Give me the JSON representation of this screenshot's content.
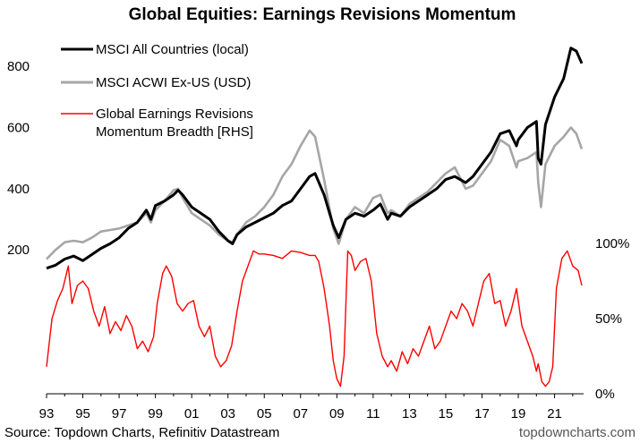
{
  "chart_data": {
    "type": "line",
    "title": "Global Equities: Earnings Revisions Momentum",
    "x_ticks": [
      "93",
      "95",
      "97",
      "99",
      "01",
      "03",
      "05",
      "07",
      "09",
      "11",
      "13",
      "15",
      "17",
      "19",
      "21"
    ],
    "x_range": [
      1993.0,
      2022.6
    ],
    "left_axis": {
      "ticks": [
        "200",
        "400",
        "600",
        "800"
      ],
      "range": [
        110,
        900
      ]
    },
    "right_axis": {
      "ticks": [
        "0%",
        "50%",
        "100%"
      ],
      "range": [
        0,
        100
      ]
    },
    "legend": [
      {
        "label": "MSCI All Countries (local)",
        "color": "#000000"
      },
      {
        "label": "MSCI ACWI Ex-US (USD)",
        "color": "#a6a6a6"
      },
      {
        "label_lines": [
          "Global Earnings Revisions",
          "Momentum Breadth [RHS]"
        ],
        "color": "#ff0000"
      }
    ],
    "series": [
      {
        "name": "MSCI All Countries (local)",
        "axis": "left",
        "color": "#000000",
        "x": [
          1993.0,
          1993.5,
          1994.0,
          1994.5,
          1995.0,
          1995.5,
          1996.0,
          1996.5,
          1997.0,
          1997.5,
          1998.0,
          1998.5,
          1998.75,
          1999.0,
          1999.5,
          2000.0,
          2000.25,
          2000.5,
          2001.0,
          2001.5,
          2002.0,
          2002.5,
          2003.0,
          2003.25,
          2003.5,
          2004.0,
          2004.5,
          2005.0,
          2005.5,
          2006.0,
          2006.5,
          2007.0,
          2007.5,
          2007.8,
          2008.3,
          2008.8,
          2009.1,
          2009.5,
          2010.0,
          2010.5,
          2011.0,
          2011.4,
          2011.8,
          2012.0,
          2012.5,
          2013.0,
          2013.5,
          2014.0,
          2014.5,
          2015.0,
          2015.5,
          2016.1,
          2016.5,
          2017.0,
          2017.5,
          2018.0,
          2018.5,
          2018.9,
          2019.0,
          2019.5,
          2020.0,
          2020.1,
          2020.25,
          2020.5,
          2021.0,
          2021.5,
          2021.9,
          2022.2,
          2022.5
        ],
        "y": [
          140,
          150,
          170,
          180,
          165,
          185,
          205,
          220,
          240,
          270,
          290,
          330,
          300,
          345,
          360,
          380,
          395,
          380,
          340,
          320,
          300,
          260,
          230,
          220,
          250,
          275,
          290,
          305,
          320,
          345,
          360,
          400,
          440,
          450,
          380,
          280,
          240,
          300,
          320,
          310,
          330,
          350,
          300,
          320,
          310,
          340,
          360,
          380,
          400,
          430,
          440,
          420,
          440,
          480,
          520,
          580,
          590,
          540,
          560,
          600,
          620,
          500,
          480,
          610,
          700,
          760,
          860,
          850,
          810
        ]
      },
      {
        "name": "MSCI ACWI Ex-US (USD)",
        "axis": "left",
        "color": "#a6a6a6",
        "x": [
          1993.0,
          1993.5,
          1994.0,
          1994.5,
          1995.0,
          1995.5,
          1996.0,
          1996.5,
          1997.0,
          1997.5,
          1998.0,
          1998.5,
          1998.75,
          1999.0,
          1999.5,
          2000.0,
          2000.25,
          2000.5,
          2001.0,
          2001.5,
          2002.0,
          2002.5,
          2003.0,
          2003.25,
          2003.5,
          2004.0,
          2004.5,
          2005.0,
          2005.5,
          2006.0,
          2006.5,
          2007.0,
          2007.5,
          2007.8,
          2008.3,
          2008.8,
          2009.1,
          2009.5,
          2010.0,
          2010.5,
          2011.0,
          2011.4,
          2011.8,
          2012.0,
          2012.5,
          2013.0,
          2013.5,
          2014.0,
          2014.5,
          2015.0,
          2015.5,
          2016.1,
          2016.5,
          2017.0,
          2017.5,
          2018.0,
          2018.5,
          2018.9,
          2019.0,
          2019.5,
          2020.0,
          2020.1,
          2020.25,
          2020.5,
          2021.0,
          2021.5,
          2021.9,
          2022.2,
          2022.5
        ],
        "y": [
          170,
          200,
          225,
          230,
          225,
          240,
          260,
          265,
          270,
          280,
          290,
          320,
          290,
          330,
          360,
          395,
          400,
          370,
          320,
          300,
          280,
          250,
          230,
          225,
          250,
          290,
          310,
          340,
          380,
          440,
          480,
          540,
          590,
          570,
          430,
          270,
          220,
          300,
          340,
          320,
          370,
          380,
          320,
          330,
          310,
          350,
          370,
          390,
          420,
          450,
          470,
          400,
          410,
          450,
          490,
          560,
          540,
          470,
          490,
          500,
          520,
          420,
          340,
          480,
          540,
          570,
          600,
          580,
          530
        ]
      },
      {
        "name": "Global Earnings Revisions Momentum Breadth [RHS]",
        "axis": "right",
        "color": "#ff0000",
        "x": [
          1993.0,
          1993.3,
          1993.6,
          1993.9,
          1994.2,
          1994.4,
          1994.7,
          1995.0,
          1995.3,
          1995.6,
          1995.9,
          1996.2,
          1996.5,
          1996.8,
          1997.1,
          1997.4,
          1997.7,
          1998.0,
          1998.3,
          1998.6,
          1998.9,
          1999.1,
          1999.4,
          1999.6,
          1999.9,
          2000.2,
          2000.5,
          2000.8,
          2001.1,
          2001.4,
          2001.7,
          2002.0,
          2002.3,
          2002.6,
          2002.9,
          2003.2,
          2003.5,
          2003.8,
          2004.1,
          2004.4,
          2004.7,
          2005.0,
          2005.5,
          2006.0,
          2006.5,
          2007.0,
          2007.5,
          2007.8,
          2008.0,
          2008.3,
          2008.6,
          2008.8,
          2009.0,
          2009.2,
          2009.4,
          2009.6,
          2009.8,
          2010.0,
          2010.3,
          2010.6,
          2010.9,
          2011.2,
          2011.5,
          2011.8,
          2012.0,
          2012.3,
          2012.6,
          2012.9,
          2013.2,
          2013.5,
          2013.8,
          2014.1,
          2014.4,
          2014.7,
          2015.0,
          2015.3,
          2015.6,
          2015.9,
          2016.2,
          2016.5,
          2016.8,
          2017.1,
          2017.4,
          2017.7,
          2018.0,
          2018.3,
          2018.6,
          2018.9,
          2019.2,
          2019.5,
          2019.8,
          2020.0,
          2020.1,
          2020.3,
          2020.5,
          2020.7,
          2020.9,
          2021.1,
          2021.4,
          2021.7,
          2022.0,
          2022.3,
          2022.5
        ],
        "y": [
          18,
          50,
          62,
          70,
          85,
          60,
          72,
          75,
          70,
          55,
          45,
          58,
          40,
          48,
          42,
          52,
          45,
          30,
          35,
          28,
          38,
          60,
          80,
          85,
          78,
          60,
          55,
          60,
          62,
          45,
          38,
          45,
          25,
          18,
          22,
          32,
          55,
          75,
          85,
          95,
          93,
          93,
          92,
          90,
          95,
          94,
          92,
          92,
          88,
          70,
          45,
          22,
          10,
          5,
          25,
          95,
          92,
          82,
          88,
          90,
          75,
          40,
          25,
          18,
          22,
          15,
          28,
          20,
          30,
          25,
          35,
          45,
          30,
          35,
          45,
          55,
          50,
          60,
          55,
          45,
          60,
          75,
          80,
          60,
          62,
          45,
          55,
          70,
          45,
          35,
          25,
          15,
          20,
          8,
          5,
          8,
          18,
          70,
          90,
          95,
          85,
          82,
          72
        ]
      }
    ],
    "footer": {
      "source": "Source: Topdown Charts, Refinitiv Datastream",
      "watermark": "topdowncharts.com"
    }
  }
}
